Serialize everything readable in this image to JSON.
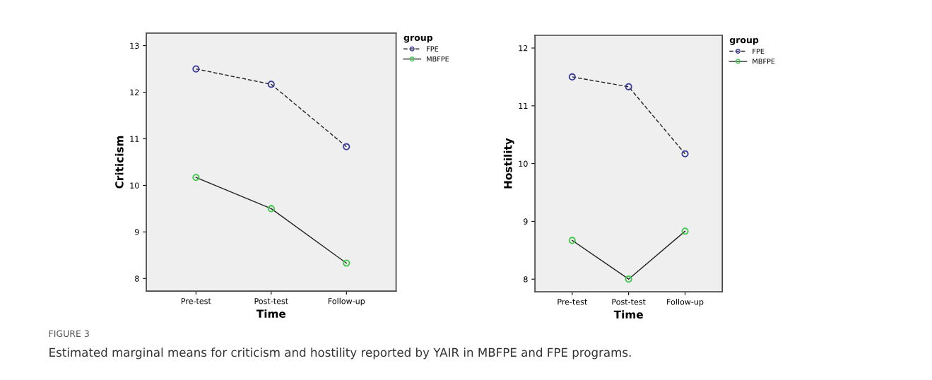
{
  "chart_data": [
    {
      "type": "line",
      "xlabel": "Time",
      "ylabel": "Criticism",
      "categories": [
        "Pre-test",
        "Post-test",
        "Follow-up"
      ],
      "ylim": [
        7.73,
        13.27
      ],
      "yticks": [
        8,
        9,
        10,
        11,
        12,
        13
      ],
      "legend": "top right",
      "legend_title": "group",
      "marker": "circle",
      "grid": false,
      "series": [
        {
          "name": "FPE",
          "color": "#3c3c9c",
          "line_style": "dashed",
          "values": [
            12.5,
            12.17,
            10.83
          ]
        },
        {
          "name": "MBFPE",
          "color": "#3fc94a",
          "line_style": "solid",
          "values": [
            10.17,
            9.5,
            8.33
          ]
        }
      ],
      "annotations": [
        "FIGURE 3",
        "Estimated marginal means for criticism and hostility reported by YAIR in MBFPE and FPE programs."
      ]
    },
    {
      "type": "line",
      "xlabel": "Time",
      "ylabel": "Hostility",
      "categories": [
        "Pre-test",
        "Post-test",
        "Follow-up"
      ],
      "ylim": [
        7.78,
        12.22
      ],
      "yticks": [
        8,
        9,
        10,
        11,
        12
      ],
      "legend": "top right",
      "legend_title": "group",
      "marker": "circle",
      "grid": false,
      "series": [
        {
          "name": "FPE",
          "color": "#3c3c9c",
          "line_style": "dashed",
          "values": [
            11.5,
            11.33,
            10.17
          ]
        },
        {
          "name": "MBFPE",
          "color": "#3fc94a",
          "line_style": "solid",
          "values": [
            8.67,
            8.0,
            8.83
          ]
        }
      ]
    }
  ]
}
